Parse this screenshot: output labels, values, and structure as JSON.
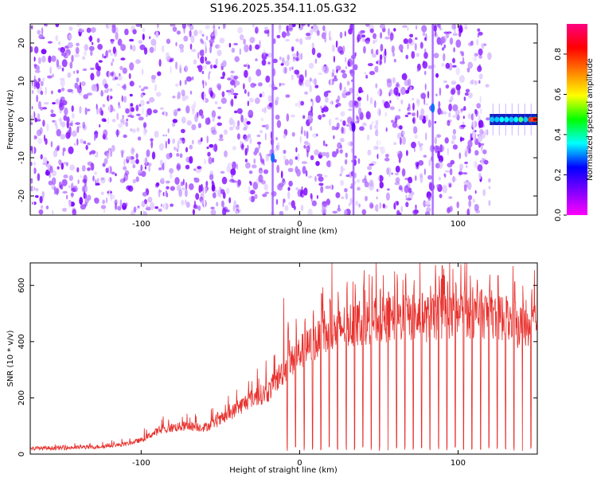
{
  "title": "S196.2025.354.11.05.G32",
  "chart_data": [
    {
      "type": "heatmap",
      "title": "S196.2025.354.11.05.G32",
      "xlabel": "Height of straight line (km)",
      "ylabel": "Frequency (Hz)",
      "xlim": [
        -170,
        150
      ],
      "ylim": [
        -25,
        25
      ],
      "x_ticks": [
        -100,
        0,
        100
      ],
      "y_ticks": [
        -20,
        -10,
        0,
        10,
        20
      ],
      "colorbar": {
        "label": "Normalized spectral amplitude",
        "range": [
          0.0,
          0.95
        ],
        "ticks": [
          0.0,
          0.2,
          0.4,
          0.6,
          0.8
        ],
        "colormap": [
          "#ff00ff",
          "#8000ff",
          "#0000ff",
          "#00ffff",
          "#00ff00",
          "#ffff00",
          "#ff8000",
          "#ff0000",
          "#ff0080"
        ]
      },
      "features": [
        {
          "name": "weak noise field",
          "x_range": [
            -170,
            120
          ],
          "amplitude": 0.05
        },
        {
          "name": "vertical streak",
          "x": -17,
          "peak_freq": -10,
          "amplitude": 0.3
        },
        {
          "name": "vertical streak",
          "x": 34,
          "peak_freq": -2,
          "amplitude": 0.1
        },
        {
          "name": "vertical streak",
          "x": 84,
          "peak_freq": 3,
          "amplitude": 0.3
        },
        {
          "name": "carrier band",
          "x_range": [
            120,
            150
          ],
          "freq": 0,
          "amplitude": 0.9
        }
      ]
    },
    {
      "type": "line",
      "xlabel": "Height of straight line (km)",
      "ylabel": "SNR (10 * v/v)",
      "xlim": [
        -170,
        150
      ],
      "ylim": [
        0,
        680
      ],
      "x_ticks": [
        -100,
        0,
        100
      ],
      "y_ticks": [
        0,
        200,
        400,
        600
      ],
      "color": "#ff0000",
      "series": [
        {
          "name": "SNR",
          "x": [
            -170,
            -150,
            -130,
            -110,
            -100,
            -90,
            -80,
            -70,
            -60,
            -50,
            -40,
            -30,
            -20,
            -15,
            -10,
            -5,
            0,
            10,
            20,
            30,
            40,
            50,
            60,
            70,
            80,
            90,
            100,
            110,
            120,
            130,
            140,
            150
          ],
          "y": [
            20,
            22,
            25,
            35,
            50,
            80,
            95,
            100,
            95,
            120,
            160,
            200,
            220,
            260,
            300,
            330,
            360,
            400,
            430,
            460,
            470,
            475,
            480,
            485,
            480,
            490,
            495,
            490,
            500,
            480,
            450,
            480
          ]
        }
      ],
      "spike_peaks": [
        {
          "x": -10,
          "y": 555
        },
        {
          "x": 60,
          "y": 650
        },
        {
          "x": 90,
          "y": 670
        }
      ],
      "dropouts": {
        "x_start": -8,
        "x_end": 148,
        "spacing_km": 5.3,
        "min_value": 10
      }
    }
  ]
}
